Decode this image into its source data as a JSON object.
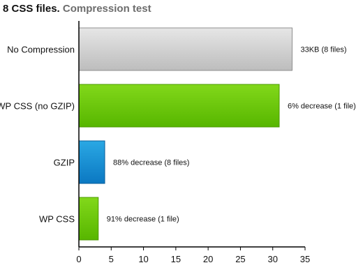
{
  "chart_data": {
    "type": "bar",
    "orientation": "horizontal",
    "title": "8 CSS files.",
    "subtitle": "Compression test",
    "xlabel": "",
    "ylabel": "",
    "xlim": [
      0,
      35
    ],
    "x_ticks": [
      "0",
      "5",
      "10",
      "15",
      "20",
      "25",
      "30",
      "35"
    ],
    "grid": false,
    "categories": [
      "No Compression",
      "WP CSS (no GZIP)",
      "GZIP",
      "WP CSS"
    ],
    "values": [
      33,
      31,
      4,
      3
    ],
    "data_labels": [
      "33KB (8 files)",
      "6% decrease (1 file)",
      "88% decrease (8 files)",
      "91% decrease (1 file)"
    ],
    "bar_colors": [
      {
        "top": "#e6e6e6",
        "bottom": "#bdbdbd",
        "stroke": "#8f8f8f"
      },
      {
        "top": "#82d81a",
        "bottom": "#57b600",
        "stroke": "#4a9a00"
      },
      {
        "top": "#2aa8e4",
        "bottom": "#0b78c2",
        "stroke": "#0a5f9a"
      },
      {
        "top": "#82d81a",
        "bottom": "#57b600",
        "stroke": "#4a9a00"
      }
    ]
  }
}
